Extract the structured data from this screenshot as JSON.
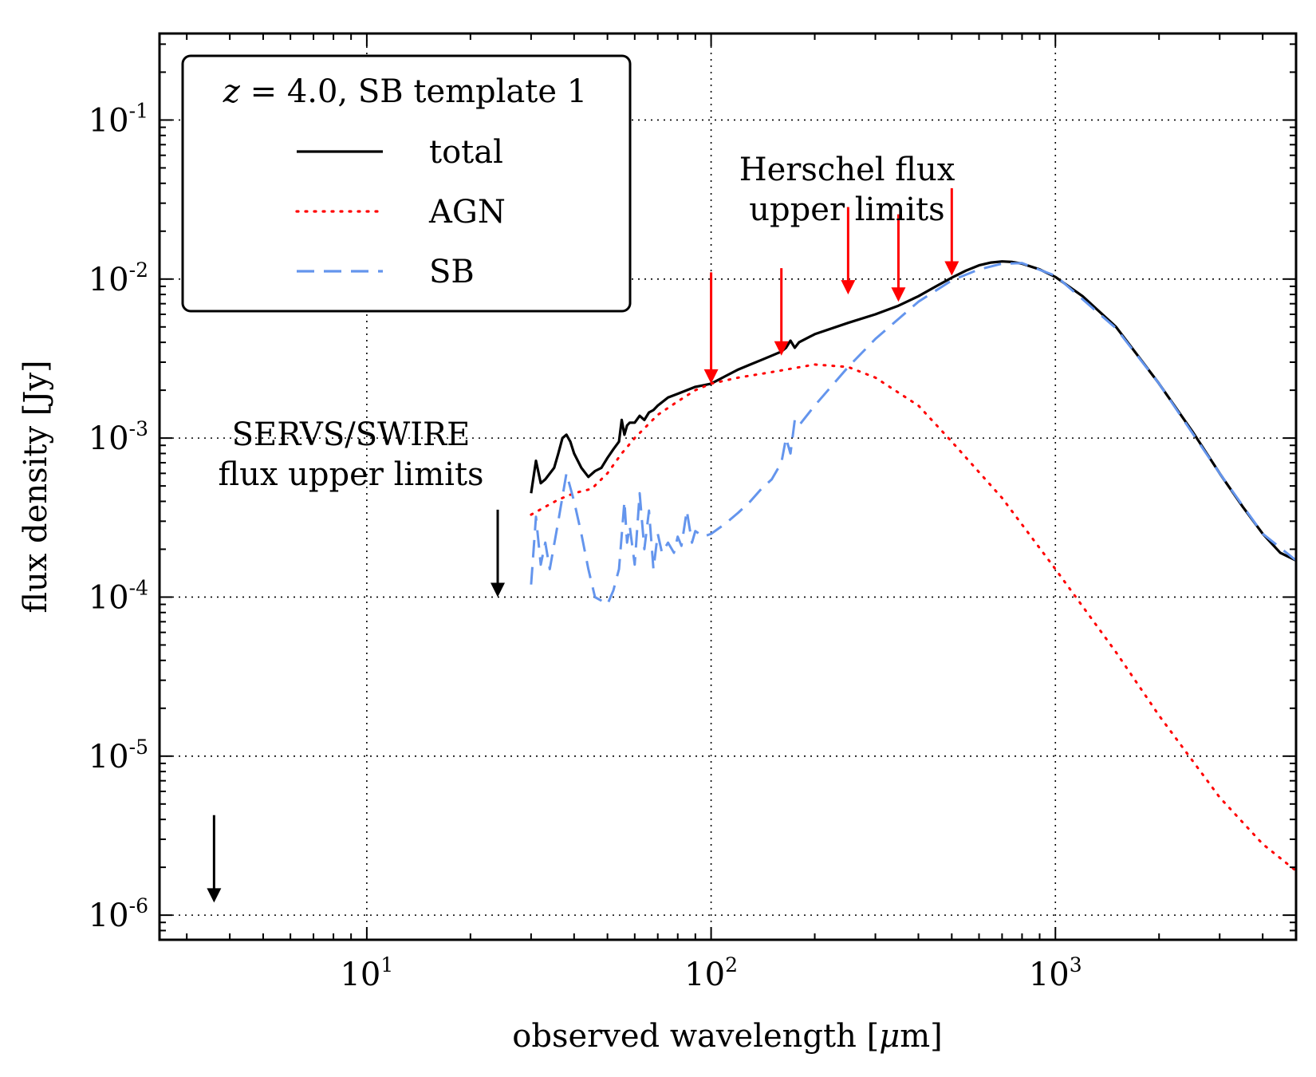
{
  "chart_data": {
    "type": "line",
    "xlabel_prefix": "observed wavelength [",
    "xlabel_mu": "μ",
    "xlabel_suffix": "m]",
    "ylabel": "flux density [Jy]",
    "xscale": "log",
    "yscale": "log",
    "xlim": [
      2.5,
      5000
    ],
    "ylim": [
      7e-07,
      0.35
    ],
    "grid": true,
    "x_ticks": [
      {
        "value": 10,
        "base": "10",
        "exp": "1"
      },
      {
        "value": 100,
        "base": "10",
        "exp": "2"
      },
      {
        "value": 1000,
        "base": "10",
        "exp": "3"
      }
    ],
    "y_ticks": [
      {
        "value": 1e-06,
        "base": "10",
        "exp": "-6"
      },
      {
        "value": 1e-05,
        "base": "10",
        "exp": "-5"
      },
      {
        "value": 0.0001,
        "base": "10",
        "exp": "-4"
      },
      {
        "value": 0.001,
        "base": "10",
        "exp": "-3"
      },
      {
        "value": 0.01,
        "base": "10",
        "exp": "-2"
      },
      {
        "value": 0.1,
        "base": "10",
        "exp": "-1"
      }
    ],
    "legend": {
      "placement": "top-left",
      "title_var": "z",
      "title_eq": " = ",
      "title_rest": "4.0, SB template 1",
      "entries": [
        {
          "label": "total",
          "color": "#000000",
          "style": "solid"
        },
        {
          "label": "AGN",
          "color": "#ff0000",
          "style": "dotted"
        },
        {
          "label": "SB",
          "color": "#6495ed",
          "style": "dashed"
        }
      ]
    },
    "series": [
      {
        "name": "total",
        "color": "#000000",
        "style": "solid",
        "x": [
          30,
          31,
          32,
          33,
          35,
          36,
          37,
          38,
          39,
          40,
          42,
          44,
          46,
          48,
          50,
          52,
          54,
          55,
          56,
          57,
          58,
          60,
          62,
          64,
          66,
          68,
          70,
          75,
          80,
          85,
          90,
          95,
          100,
          110,
          120,
          130,
          140,
          150,
          160,
          165,
          170,
          175,
          180,
          200,
          250,
          300,
          350,
          400,
          450,
          500,
          550,
          600,
          650,
          700,
          750,
          800,
          900,
          1000,
          1200,
          1500,
          2000,
          2500,
          3000,
          3500,
          4000,
          4500,
          5000
        ],
        "y": [
          0.00045,
          0.00072,
          0.00052,
          0.00055,
          0.00065,
          0.0008,
          0.001,
          0.00105,
          0.00095,
          0.0008,
          0.00065,
          0.00057,
          0.00062,
          0.00065,
          0.00075,
          0.00085,
          0.00095,
          0.0013,
          0.00105,
          0.0012,
          0.00125,
          0.00125,
          0.00138,
          0.0013,
          0.00145,
          0.0015,
          0.0016,
          0.0018,
          0.0019,
          0.002,
          0.0021,
          0.00215,
          0.0022,
          0.00245,
          0.0027,
          0.0029,
          0.0031,
          0.0033,
          0.0035,
          0.0037,
          0.0041,
          0.0037,
          0.004,
          0.0045,
          0.0053,
          0.006,
          0.0068,
          0.0078,
          0.009,
          0.0102,
          0.0113,
          0.0122,
          0.0127,
          0.0129,
          0.0128,
          0.0125,
          0.0115,
          0.0103,
          0.0078,
          0.005,
          0.0022,
          0.0011,
          0.0006,
          0.00037,
          0.00025,
          0.00019,
          0.00017
        ]
      },
      {
        "name": "AGN",
        "color": "#ff0000",
        "style": "dotted",
        "x": [
          30,
          33,
          36,
          40,
          45,
          50,
          55,
          60,
          70,
          80,
          90,
          100,
          120,
          150,
          200,
          250,
          300,
          400,
          500,
          700,
          1000,
          1500,
          2000,
          3000,
          4000,
          5000
        ],
        "y": [
          0.00033,
          0.00037,
          0.00041,
          0.00045,
          0.00048,
          0.0006,
          0.0008,
          0.001,
          0.0014,
          0.0017,
          0.002,
          0.0022,
          0.0024,
          0.0026,
          0.0029,
          0.0028,
          0.0024,
          0.0016,
          0.00095,
          0.00042,
          0.00015,
          4.5e-05,
          1.8e-05,
          5.5e-06,
          2.8e-06,
          1.9e-06
        ]
      },
      {
        "name": "SB",
        "color": "#6495ed",
        "style": "dashed",
        "x": [
          30,
          31,
          32,
          33,
          34,
          36,
          38,
          40,
          42,
          44,
          46,
          48,
          50,
          52,
          54,
          56,
          57,
          58,
          60,
          62,
          64,
          66,
          68,
          70,
          72,
          75,
          78,
          80,
          82,
          85,
          88,
          90,
          95,
          100,
          110,
          120,
          130,
          140,
          150,
          160,
          165,
          170,
          175,
          180,
          200,
          250,
          300,
          400,
          500,
          600,
          700,
          800,
          1000,
          1500,
          2000,
          3000,
          4000,
          5000
        ],
        "y": [
          0.00012,
          0.00032,
          0.00016,
          0.00022,
          0.00015,
          0.0003,
          0.0006,
          0.0004,
          0.00025,
          0.00015,
          0.0001,
          9.5e-05,
          9e-05,
          0.00011,
          0.00015,
          0.0004,
          0.00022,
          0.00028,
          0.00016,
          0.00045,
          0.0002,
          0.00035,
          0.00015,
          0.00025,
          0.00019,
          0.00022,
          0.00019,
          0.00024,
          0.00021,
          0.00035,
          0.00022,
          0.00026,
          0.00024,
          0.00025,
          0.00029,
          0.00034,
          0.0004,
          0.00048,
          0.00055,
          0.0007,
          0.001,
          0.0008,
          0.0013,
          0.0012,
          0.0016,
          0.0028,
          0.0042,
          0.0072,
          0.0098,
          0.0115,
          0.0125,
          0.0126,
          0.0105,
          0.0049,
          0.0022,
          0.0006,
          0.00025,
          0.00017
        ]
      }
    ],
    "upper_limits": [
      {
        "group": "Herschel",
        "x": 100,
        "y": 0.0022,
        "length_dex": 0.7,
        "color": "#ff0000"
      },
      {
        "group": "Herschel",
        "x": 160,
        "y": 0.0033,
        "length_dex": 0.55,
        "color": "#ff0000"
      },
      {
        "group": "Herschel",
        "x": 250,
        "y": 0.008,
        "length_dex": 0.55,
        "color": "#ff0000"
      },
      {
        "group": "Herschel",
        "x": 350,
        "y": 0.0072,
        "length_dex": 0.55,
        "color": "#ff0000"
      },
      {
        "group": "Herschel",
        "x": 500,
        "y": 0.0105,
        "length_dex": 0.55,
        "color": "#ff0000"
      },
      {
        "group": "SERVS/SWIRE",
        "x": 3.6,
        "y": 1.2e-06,
        "length_dex": 0.55,
        "color": "#000000"
      },
      {
        "group": "SERVS/SWIRE",
        "x": 24,
        "y": 0.0001,
        "length_dex": 0.55,
        "color": "#000000"
      }
    ],
    "annotations": [
      {
        "id": "herschel",
        "lines": [
          "Herschel flux",
          "upper limits"
        ]
      },
      {
        "id": "servs",
        "lines": [
          "SERVS/SWIRE",
          "flux upper limits"
        ]
      }
    ]
  }
}
